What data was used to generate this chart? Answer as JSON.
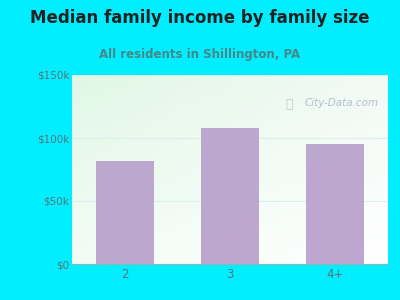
{
  "title": "Median family income by family size",
  "subtitle": "All residents in Shillington, PA",
  "categories": [
    "2",
    "3",
    "4+"
  ],
  "values": [
    82000,
    108000,
    95000
  ],
  "bar_color": "#b8a0cc",
  "ylim": [
    0,
    150000
  ],
  "yticks": [
    0,
    50000,
    100000,
    150000
  ],
  "ytick_labels": [
    "$0",
    "$50k",
    "$100k",
    "$150k"
  ],
  "bg_outer": "#00eeff",
  "title_fontsize": 12,
  "subtitle_fontsize": 8.5,
  "title_color": "#222222",
  "subtitle_color": "#448888",
  "tick_color": "#557777",
  "watermark": "City-Data.com",
  "watermark_color": "#aabbcc",
  "grid_color": "#ddeeee",
  "bar_width": 0.55
}
